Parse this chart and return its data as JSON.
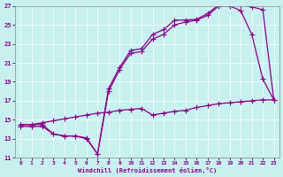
{
  "title": "",
  "xlabel": "Windchill (Refroidissement éolien,°C)",
  "ylabel": "",
  "background_color": "#c8f0f0",
  "line_color": "#880088",
  "xlim": [
    -0.5,
    23.5
  ],
  "ylim": [
    11,
    27
  ],
  "xticks": [
    0,
    1,
    2,
    3,
    4,
    5,
    6,
    7,
    8,
    9,
    10,
    11,
    12,
    13,
    14,
    15,
    16,
    17,
    18,
    19,
    20,
    21,
    22,
    23
  ],
  "yticks": [
    11,
    13,
    15,
    17,
    19,
    21,
    23,
    25,
    27
  ],
  "line1_x": [
    0,
    1,
    2,
    3,
    4,
    5,
    6,
    7,
    8,
    9,
    10,
    11,
    12,
    13,
    14,
    15,
    16,
    17,
    18,
    19,
    20,
    21,
    22,
    23
  ],
  "line1_y": [
    14.3,
    14.3,
    14.3,
    13.5,
    13.3,
    13.3,
    13.1,
    11.4,
    18.3,
    20.5,
    22.3,
    22.5,
    24.0,
    24.5,
    25.5,
    25.5,
    25.6,
    26.2,
    27.1,
    27.1,
    27.1,
    26.9,
    26.6,
    17.1
  ],
  "line2_x": [
    0,
    1,
    2,
    3,
    4,
    5,
    6,
    7,
    8,
    9,
    10,
    11,
    12,
    13,
    14,
    15,
    16,
    17,
    18,
    19,
    20,
    21,
    22,
    23
  ],
  "line2_y": [
    14.5,
    14.5,
    14.5,
    13.5,
    13.3,
    13.3,
    13.0,
    11.4,
    18.0,
    20.3,
    22.0,
    22.2,
    23.5,
    24.0,
    25.0,
    25.3,
    25.5,
    26.0,
    27.0,
    27.0,
    26.5,
    24.0,
    19.3,
    17.1
  ],
  "line3_x": [
    0,
    1,
    2,
    3,
    4,
    5,
    6,
    7,
    8,
    9,
    10,
    11,
    12,
    13,
    14,
    15,
    16,
    17,
    18,
    19,
    20,
    21,
    22,
    23
  ],
  "line3_y": [
    14.5,
    14.5,
    14.7,
    14.9,
    15.1,
    15.3,
    15.5,
    15.7,
    15.8,
    16.0,
    16.1,
    16.2,
    15.5,
    15.7,
    15.9,
    16.0,
    16.3,
    16.5,
    16.7,
    16.8,
    16.9,
    17.0,
    17.1,
    17.1
  ]
}
